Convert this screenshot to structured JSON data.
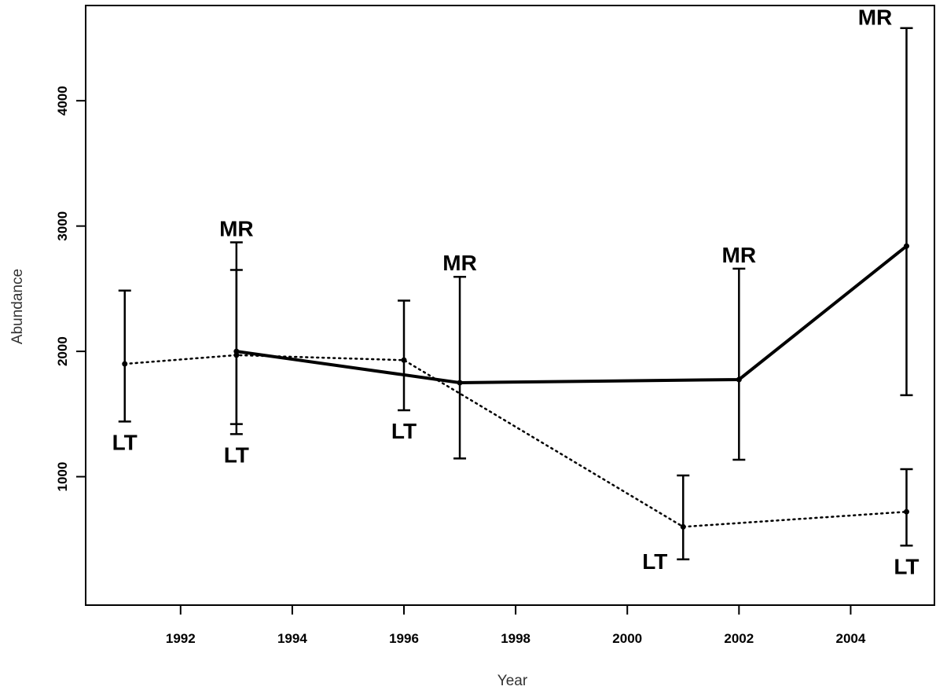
{
  "chart_data": {
    "type": "line",
    "xlabel": "Year",
    "ylabel": "Abundance",
    "xlim": [
      1990.3,
      2005.5
    ],
    "ylim": [
      -25,
      4760
    ],
    "x_ticks": [
      "1992",
      "1994",
      "1996",
      "1998",
      "2000",
      "2002",
      "2004"
    ],
    "y_ticks": [
      "1000",
      "2000",
      "3000",
      "4000"
    ],
    "series": [
      {
        "label": "MR",
        "line_style": "solid",
        "points": [
          {
            "year": 1993,
            "value": 2000,
            "lower": 1420,
            "upper": 2870
          },
          {
            "year": 1997,
            "value": 1750,
            "lower": 1145,
            "upper": 2595
          },
          {
            "year": 2002,
            "value": 1775,
            "lower": 1135,
            "upper": 2660
          },
          {
            "year": 2005,
            "value": 2840,
            "lower": 1650,
            "upper": 4580
          }
        ]
      },
      {
        "label": "LT",
        "line_style": "dotted",
        "points": [
          {
            "year": 1991,
            "value": 1900,
            "lower": 1440,
            "upper": 2485
          },
          {
            "year": 1993,
            "value": 1970,
            "lower": 1340,
            "upper": 2650
          },
          {
            "year": 1996,
            "value": 1930,
            "lower": 1530,
            "upper": 2405
          },
          {
            "year": 2001,
            "value": 600,
            "lower": 340,
            "upper": 1010
          },
          {
            "year": 2005,
            "value": 720,
            "lower": 450,
            "upper": 1060
          }
        ]
      }
    ]
  }
}
